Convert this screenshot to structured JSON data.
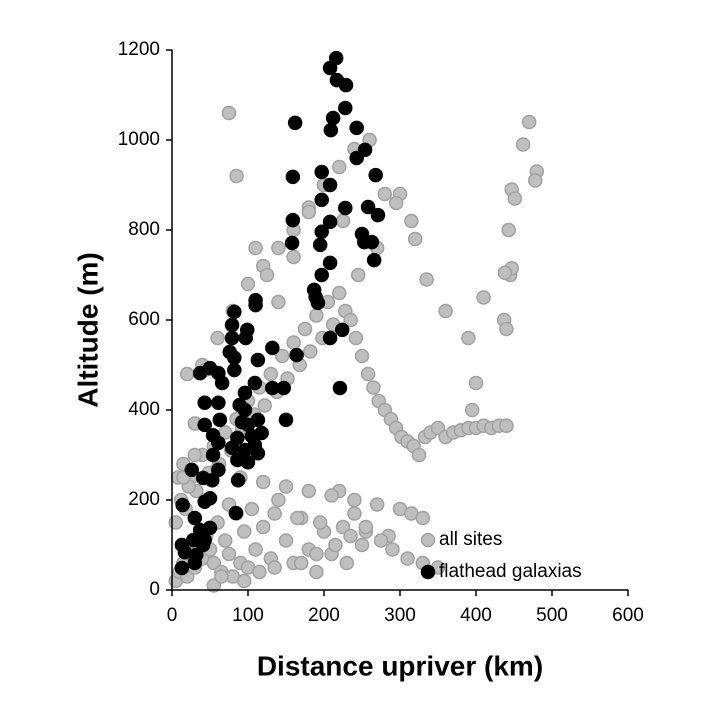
{
  "chart_data": {
    "type": "scatter",
    "xlabel": "Distance upriver (km)",
    "ylabel": "Altitude (m)",
    "xlim": [
      0,
      600
    ],
    "ylim": [
      0,
      1200
    ],
    "xticks": [
      0,
      100,
      200,
      300,
      400,
      500,
      600
    ],
    "yticks": [
      0,
      200,
      400,
      600,
      800,
      1000,
      1200
    ],
    "legend": "lower right",
    "series": [
      {
        "name": "all sites",
        "color": "#bfbfbf",
        "x": [
          5,
          10,
          15,
          20,
          25,
          30,
          35,
          40,
          45,
          50,
          55,
          60,
          65,
          70,
          75,
          80,
          85,
          90,
          95,
          100,
          110,
          120,
          130,
          140,
          150,
          160,
          170,
          180,
          190,
          200,
          210,
          220,
          230,
          240,
          250,
          5,
          12,
          18,
          25,
          32,
          40,
          48,
          55,
          62,
          70,
          78,
          85,
          92,
          100,
          108,
          115,
          122,
          130,
          138,
          145,
          152,
          160,
          168,
          175,
          182,
          190,
          198,
          205,
          212,
          220,
          228,
          235,
          242,
          250,
          258,
          265,
          272,
          280,
          288,
          295,
          302,
          310,
          318,
          325,
          333,
          340,
          350,
          360,
          370,
          380,
          390,
          400,
          410,
          420,
          430,
          440,
          8,
          15,
          22,
          30,
          45,
          60,
          75,
          90,
          105,
          120,
          135,
          150,
          165,
          180,
          195,
          210,
          225,
          240,
          255,
          270,
          285,
          300,
          315,
          330,
          20,
          40,
          60,
          80,
          100,
          120,
          140,
          160,
          180,
          200,
          220,
          240,
          260,
          280,
          300,
          320,
          75,
          85,
          110,
          125,
          140,
          160,
          180,
          200,
          225,
          245,
          270,
          295,
          315,
          335,
          360,
          390,
          410,
          445,
          470,
          462,
          480,
          478,
          447,
          451,
          443,
          447,
          438,
          437,
          440,
          400,
          395,
          440,
          55,
          65,
          95,
          115,
          135,
          170,
          190,
          215,
          235,
          255,
          275,
          290,
          310,
          330,
          350,
          15,
          30,
          45
        ],
        "values": [
          20,
          40,
          60,
          30,
          80,
          50,
          100,
          70,
          120,
          90,
          60,
          150,
          40,
          110,
          80,
          30,
          170,
          60,
          130,
          50,
          90,
          140,
          70,
          200,
          110,
          60,
          160,
          90,
          40,
          130,
          80,
          220,
          60,
          170,
          100,
          150,
          200,
          180,
          250,
          220,
          300,
          260,
          320,
          280,
          350,
          310,
          380,
          360,
          420,
          390,
          450,
          410,
          480,
          440,
          520,
          470,
          550,
          500,
          580,
          530,
          610,
          560,
          640,
          590,
          660,
          620,
          600,
          560,
          520,
          480,
          450,
          420,
          400,
          380,
          360,
          340,
          330,
          320,
          300,
          340,
          350,
          360,
          340,
          350,
          355,
          360,
          360,
          365,
          360,
          365,
          365,
          250,
          280,
          230,
          300,
          200,
          270,
          190,
          250,
          180,
          240,
          170,
          230,
          160,
          220,
          150,
          210,
          140,
          200,
          130,
          190,
          120,
          180,
          170,
          160,
          480,
          500,
          560,
          620,
          680,
          720,
          760,
          800,
          850,
          900,
          940,
          980,
          1000,
          880,
          880,
          780,
          1060,
          920,
          760,
          700,
          640,
          740,
          840,
          900,
          820,
          700,
          760,
          860,
          820,
          690,
          620,
          560,
          650,
          700,
          1040,
          990,
          930,
          910,
          890,
          870,
          800,
          715,
          705,
          600,
          580,
          460,
          400,
          365,
          10,
          30,
          20,
          40,
          50,
          60,
          80,
          100,
          120,
          140,
          110,
          90,
          70,
          60,
          50,
          250,
          370,
          490
        ]
      },
      {
        "name": "flathead galaxias",
        "color": "#000000",
        "x": [
          216,
          208,
          217,
          229,
          228,
          212,
          209,
          243,
          162,
          254,
          243,
          268,
          197,
          208,
          159,
          197,
          228,
          258,
          271,
          159,
          208,
          197,
          250,
          263,
          253,
          158,
          195,
          208,
          266,
          197,
          187,
          189,
          192,
          110,
          110,
          82,
          79,
          99,
          97,
          79,
          132,
          76,
          82,
          164,
          224,
          208,
          221,
          82,
          50,
          61,
          37,
          66,
          109,
          96,
          132,
          147,
          113,
          43,
          61,
          89,
          96,
          63,
          92,
          100,
          113,
          150,
          43,
          54,
          86,
          105,
          118,
          61,
          109,
          79,
          96,
          54,
          113,
          86,
          100,
          61,
          87,
          41,
          26,
          53,
          43,
          50,
          14,
          84,
          30,
          37,
          50,
          28,
          13,
          17,
          41,
          32,
          13,
          30,
          43
        ],
        "values": [
          1182,
          1160,
          1133,
          1122,
          1071,
          1049,
          1022,
          1027,
          1038,
          978,
          960,
          922,
          929,
          900,
          918,
          867,
          849,
          851,
          833,
          822,
          818,
          796,
          791,
          773,
          773,
          771,
          767,
          727,
          733,
          700,
          667,
          651,
          638,
          644,
          633,
          618,
          589,
          578,
          560,
          560,
          538,
          529,
          516,
          522,
          578,
          560,
          449,
          489,
          493,
          482,
          482,
          460,
          460,
          438,
          449,
          449,
          511,
          416,
          416,
          411,
          400,
          378,
          373,
          367,
          378,
          378,
          367,
          344,
          338,
          342,
          349,
          327,
          322,
          316,
          311,
          300,
          304,
          289,
          284,
          267,
          244,
          249,
          267,
          244,
          196,
          204,
          189,
          171,
          160,
          133,
          138,
          111,
          100,
          84,
          100,
          78,
          49,
          60,
          111
        ]
      }
    ]
  }
}
